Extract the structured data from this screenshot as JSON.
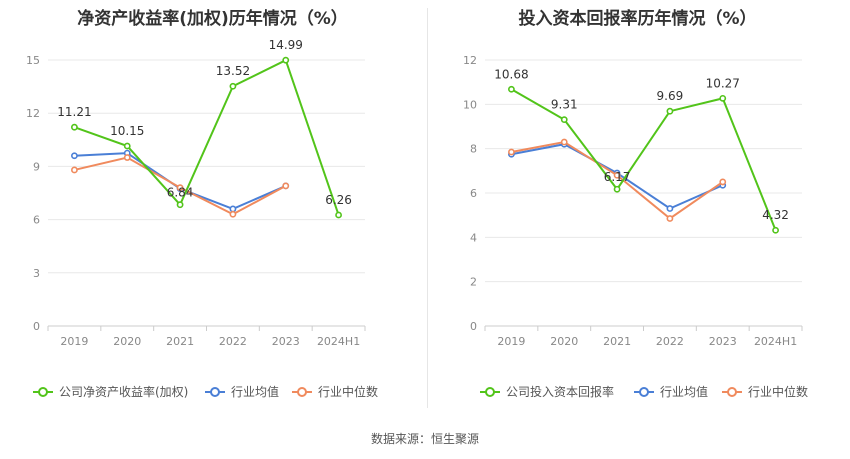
{
  "source_label": "数据来源：恒生聚源",
  "charts": [
    {
      "title": "净资产收益率(加权)历年情况（%）",
      "chart_data": {
        "type": "line",
        "categories": [
          "2019",
          "2020",
          "2021",
          "2022",
          "2023",
          "2024H1"
        ],
        "ylim": [
          0,
          15
        ],
        "yticks": [
          0,
          3,
          6,
          9,
          12,
          15
        ],
        "grid": true,
        "legend_position": "bottom-left",
        "series": [
          {
            "name": "公司净资产收益率(加权)",
            "color": "#52c41a",
            "values": [
              11.21,
              10.15,
              6.84,
              13.52,
              14.99,
              6.26
            ],
            "labels": [
              "11.21",
              "10.15",
              "6.84",
              "13.52",
              "14.99",
              "6.26"
            ]
          },
          {
            "name": "行业均值",
            "color": "#4a7fd6",
            "values": [
              9.6,
              9.75,
              7.75,
              6.6,
              7.9,
              null
            ]
          },
          {
            "name": "行业中位数",
            "color": "#f08a5d",
            "values": [
              8.8,
              9.5,
              7.8,
              6.3,
              7.9,
              null
            ]
          }
        ]
      }
    },
    {
      "title": "投入资本回报率历年情况（%）",
      "chart_data": {
        "type": "line",
        "categories": [
          "2019",
          "2020",
          "2021",
          "2022",
          "2023",
          "2024H1"
        ],
        "ylim": [
          0,
          12
        ],
        "yticks": [
          0,
          2,
          4,
          6,
          8,
          10,
          12
        ],
        "grid": true,
        "legend_position": "bottom-left",
        "series": [
          {
            "name": "公司投入资本回报率",
            "color": "#52c41a",
            "values": [
              10.68,
              9.31,
              6.17,
              9.69,
              10.27,
              4.32
            ],
            "labels": [
              "10.68",
              "9.31",
              "6.17",
              "9.69",
              "10.27",
              "4.32"
            ]
          },
          {
            "name": "行业均值",
            "color": "#4a7fd6",
            "values": [
              7.75,
              8.2,
              6.9,
              5.3,
              6.35,
              null
            ]
          },
          {
            "name": "行业中位数",
            "color": "#f08a5d",
            "values": [
              7.85,
              8.3,
              6.8,
              4.85,
              6.5,
              null
            ]
          }
        ]
      }
    }
  ]
}
